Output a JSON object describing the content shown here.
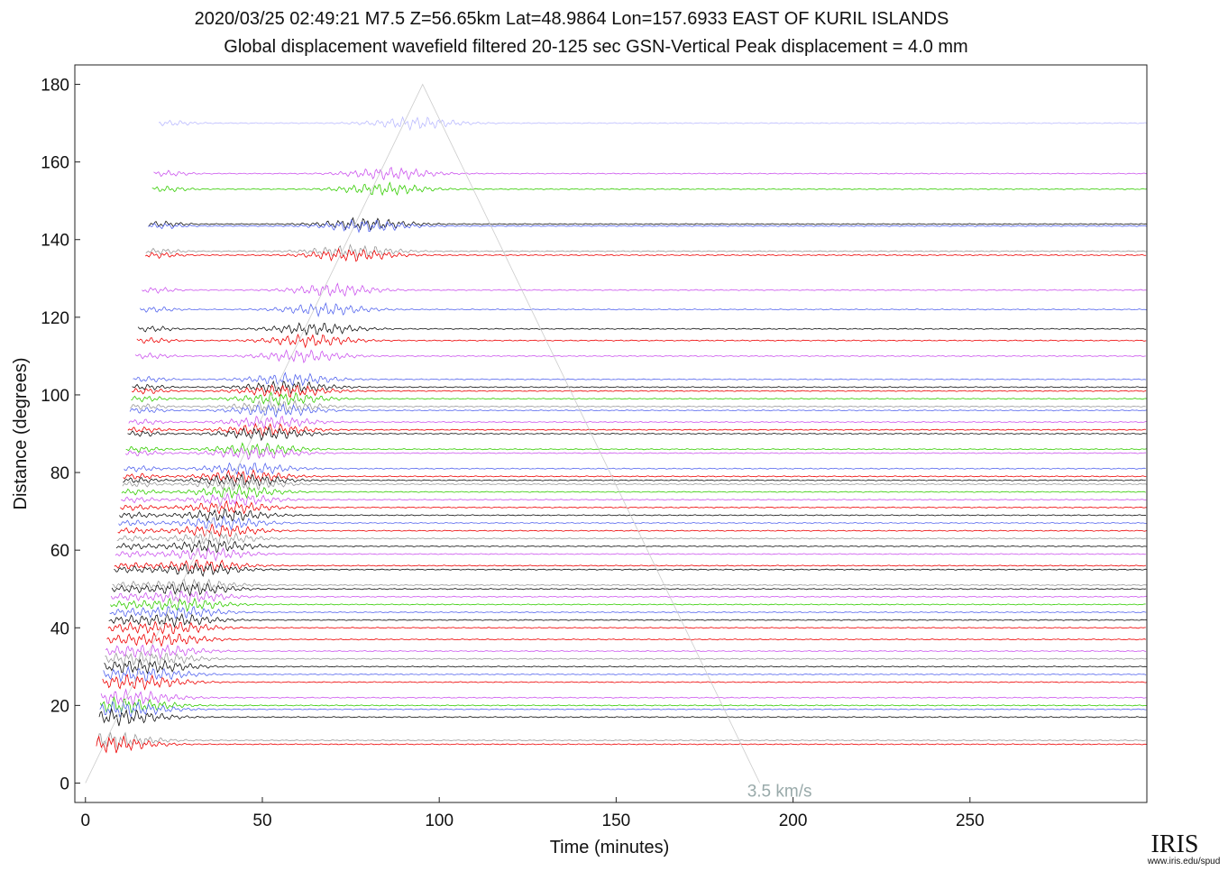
{
  "chart_data": {
    "type": "record-section",
    "title": "2020/03/25  02:49:21  M7.5  Z=56.65km  Lat=48.9864 Lon=157.6933  EAST OF KURIL ISLANDS",
    "subtitle": "Global displacement wavefield     filtered 20-125 sec     GSN-Vertical     Peak displacement = 4.0 mm",
    "x_label": "Time (minutes)",
    "y_label": "Distance (degrees)",
    "xlim": [
      -3,
      300
    ],
    "ylim": [
      -5,
      185
    ],
    "xticks": [
      0,
      50,
      100,
      150,
      200,
      250
    ],
    "yticks": [
      0,
      20,
      40,
      60,
      80,
      100,
      120,
      140,
      160,
      180
    ],
    "traces": [
      {
        "distance": 170,
        "color": "#bbbbff"
      },
      {
        "distance": 157,
        "color": "#cc55ee"
      },
      {
        "distance": 153,
        "color": "#33cc00"
      },
      {
        "distance": 144,
        "color": "#111111"
      },
      {
        "distance": 143.5,
        "color": "#5566ee"
      },
      {
        "distance": 137,
        "color": "#999999"
      },
      {
        "distance": 136,
        "color": "#ee0000"
      },
      {
        "distance": 127,
        "color": "#cc55ee"
      },
      {
        "distance": 122,
        "color": "#5566ee"
      },
      {
        "distance": 117,
        "color": "#111111"
      },
      {
        "distance": 114,
        "color": "#ee0000"
      },
      {
        "distance": 110,
        "color": "#cc55ee"
      },
      {
        "distance": 104,
        "color": "#5566ee"
      },
      {
        "distance": 102,
        "color": "#111111"
      },
      {
        "distance": 101,
        "color": "#ee0000"
      },
      {
        "distance": 99,
        "color": "#33cc00"
      },
      {
        "distance": 97,
        "color": "#999999"
      },
      {
        "distance": 96,
        "color": "#5566ee"
      },
      {
        "distance": 93,
        "color": "#cc55ee"
      },
      {
        "distance": 91,
        "color": "#ee0000"
      },
      {
        "distance": 90,
        "color": "#111111"
      },
      {
        "distance": 86,
        "color": "#33cc00"
      },
      {
        "distance": 85,
        "color": "#cc55ee"
      },
      {
        "distance": 81,
        "color": "#5566ee"
      },
      {
        "distance": 79,
        "color": "#ee0000"
      },
      {
        "distance": 78,
        "color": "#111111"
      },
      {
        "distance": 77,
        "color": "#999999"
      },
      {
        "distance": 75,
        "color": "#33cc00"
      },
      {
        "distance": 73,
        "color": "#cc55ee"
      },
      {
        "distance": 71,
        "color": "#ee0000"
      },
      {
        "distance": 69,
        "color": "#111111"
      },
      {
        "distance": 67,
        "color": "#5566ee"
      },
      {
        "distance": 65,
        "color": "#ee0000"
      },
      {
        "distance": 63,
        "color": "#999999"
      },
      {
        "distance": 61,
        "color": "#111111"
      },
      {
        "distance": 59,
        "color": "#cc55ee"
      },
      {
        "distance": 56,
        "color": "#ee0000"
      },
      {
        "distance": 55,
        "color": "#111111"
      },
      {
        "distance": 51,
        "color": "#999999"
      },
      {
        "distance": 50,
        "color": "#111111"
      },
      {
        "distance": 48,
        "color": "#cc55ee"
      },
      {
        "distance": 46,
        "color": "#33cc00"
      },
      {
        "distance": 44,
        "color": "#5566ee"
      },
      {
        "distance": 42,
        "color": "#111111"
      },
      {
        "distance": 40,
        "color": "#ee0000"
      },
      {
        "distance": 37,
        "color": "#ee0000"
      },
      {
        "distance": 34,
        "color": "#cc55ee"
      },
      {
        "distance": 32,
        "color": "#999999"
      },
      {
        "distance": 30,
        "color": "#111111"
      },
      {
        "distance": 28,
        "color": "#5566ee"
      },
      {
        "distance": 26,
        "color": "#ee0000"
      },
      {
        "distance": 22,
        "color": "#cc55ee"
      },
      {
        "distance": 20,
        "color": "#33cc00"
      },
      {
        "distance": 19,
        "color": "#5566ee"
      },
      {
        "distance": 17,
        "color": "#111111"
      },
      {
        "distance": 11,
        "color": "#999999"
      },
      {
        "distance": 10,
        "color": "#ee0000"
      }
    ],
    "velocity_line": {
      "label": "3.5 km/s",
      "color": "#99aaaa",
      "x": [
        0,
        95.3,
        190.6
      ],
      "y": [
        0,
        180,
        0
      ]
    },
    "logo": {
      "name": "IRIS",
      "url": "www.iris.edu/spud"
    }
  }
}
